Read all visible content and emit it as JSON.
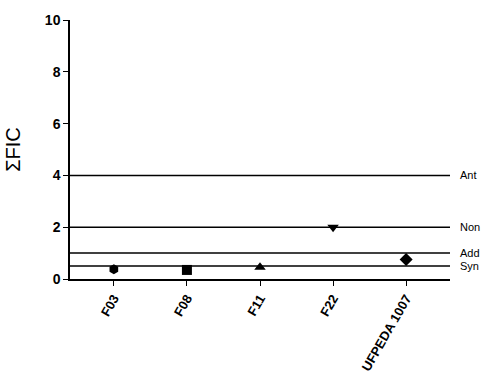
{
  "chart_data": {
    "type": "scatter",
    "y_label": "ΣFIC",
    "categories": [
      "F03",
      "F08",
      "F11",
      "F22",
      "UFPEDA 1007"
    ],
    "series": [
      {
        "marker": "hexagon",
        "color": "#000000",
        "values": [
          0.38,
          null,
          null,
          null,
          null
        ]
      },
      {
        "marker": "square",
        "color": "#000000",
        "values": [
          null,
          0.35,
          null,
          null,
          null
        ]
      },
      {
        "marker": "triangle-up",
        "color": "#000000",
        "values": [
          null,
          null,
          0.45,
          null,
          null
        ]
      },
      {
        "marker": "triangle-down",
        "color": "#000000",
        "values": [
          null,
          null,
          null,
          2.0,
          null
        ]
      },
      {
        "marker": "diamond",
        "color": "#000000",
        "values": [
          null,
          null,
          null,
          null,
          0.75
        ]
      }
    ],
    "reference_lines": [
      {
        "value": 4,
        "label": "Ant"
      },
      {
        "value": 2,
        "label": "Non"
      },
      {
        "value": 1,
        "label": "Add"
      },
      {
        "value": 0.5,
        "label": "Syn"
      }
    ],
    "ylim": [
      0,
      10
    ],
    "yticks": [
      0,
      2,
      4,
      6,
      8,
      10
    ],
    "grid": false
  }
}
